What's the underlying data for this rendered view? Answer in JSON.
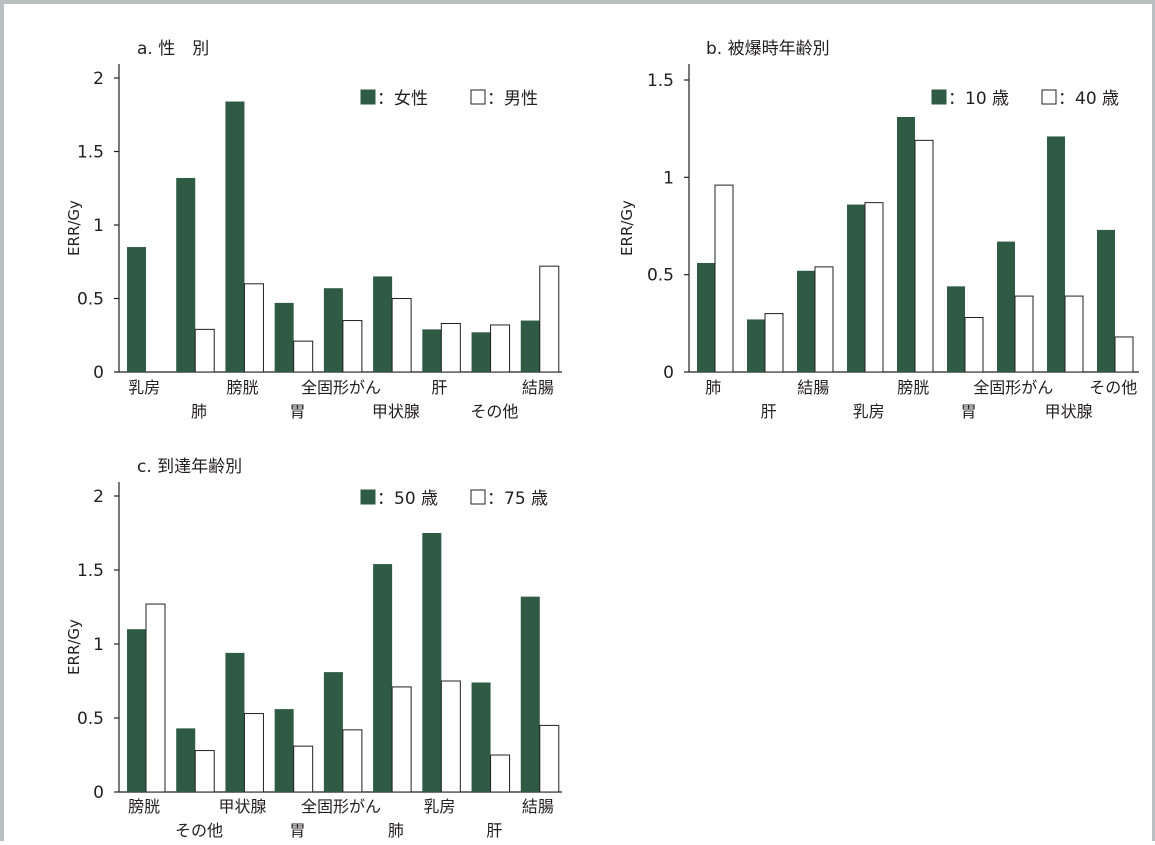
{
  "colors": {
    "filled": "#2f5b44",
    "open": "#ffffff",
    "stroke": "#231f20",
    "frame": "#b9bec0"
  },
  "chart_data": [
    {
      "id": "a",
      "type": "bar",
      "title": "a.  性　別",
      "ylabel": "ERR/Gy",
      "xlabel": "",
      "ylim": [
        0,
        2
      ],
      "yticks": [
        "0",
        "0.5",
        "1",
        "1.5",
        "2"
      ],
      "categories": [
        "乳房",
        "肺",
        "膀胱",
        "胃",
        "全固形がん",
        "甲状腺",
        "肝",
        "その他",
        "結腸"
      ],
      "series": [
        {
          "name": "女性",
          "legend": "■：女性",
          "style": "filled",
          "values": [
            0.85,
            1.32,
            1.84,
            0.47,
            0.57,
            0.65,
            0.29,
            0.27,
            0.35
          ]
        },
        {
          "name": "男性",
          "legend": "□：男性",
          "style": "open",
          "values": [
            null,
            0.29,
            0.6,
            0.21,
            0.35,
            0.5,
            0.33,
            0.32,
            0.72
          ]
        }
      ],
      "legend_position": "top-right",
      "grid": false
    },
    {
      "id": "b",
      "type": "bar",
      "title": "b.  被爆時年齢別",
      "ylabel": "ERR/Gy",
      "xlabel": "",
      "ylim": [
        0,
        1.5
      ],
      "yticks": [
        "0",
        "0.5",
        "1",
        "1.5"
      ],
      "categories": [
        "肺",
        "肝",
        "結腸",
        "乳房",
        "膀胱",
        "胃",
        "全固形がん",
        "甲状腺",
        "その他"
      ],
      "series": [
        {
          "name": "10 歳",
          "legend": "■：10 歳",
          "style": "filled",
          "values": [
            0.56,
            0.27,
            0.52,
            0.86,
            1.31,
            0.44,
            0.67,
            1.21,
            0.73
          ]
        },
        {
          "name": "40 歳",
          "legend": "□：40 歳",
          "style": "open",
          "values": [
            0.96,
            0.3,
            0.54,
            0.87,
            1.19,
            0.28,
            0.39,
            0.39,
            0.18
          ]
        }
      ],
      "legend_position": "top-right",
      "grid": false
    },
    {
      "id": "c",
      "type": "bar",
      "title": "c.  到達年齢別",
      "ylabel": "ERR/Gy",
      "xlabel": "",
      "ylim": [
        0,
        2
      ],
      "yticks": [
        "0",
        "0.5",
        "1",
        "1.5",
        "2"
      ],
      "categories": [
        "膀胱",
        "その他",
        "甲状腺",
        "胃",
        "全固形がん",
        "肺",
        "乳房",
        "肝",
        "結腸"
      ],
      "series": [
        {
          "name": "50 歳",
          "legend": "■：50 歳",
          "style": "filled",
          "values": [
            1.1,
            0.43,
            0.94,
            0.56,
            0.81,
            1.54,
            1.75,
            0.74,
            1.32
          ]
        },
        {
          "name": "75 歳",
          "legend": "□：75 歳",
          "style": "open",
          "values": [
            1.27,
            0.28,
            0.53,
            0.31,
            0.42,
            0.71,
            0.75,
            0.25,
            0.45
          ]
        }
      ],
      "legend_position": "top-right",
      "grid": false
    }
  ]
}
